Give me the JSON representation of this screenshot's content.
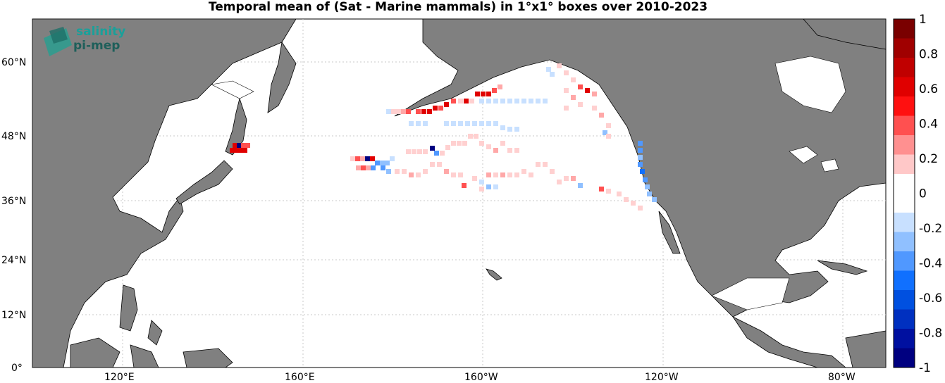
{
  "title": "Temporal mean of (Sat - Marine mammals) in 1°x1° boxes over 2010-2023",
  "logo": {
    "line1": "salinity",
    "line2": "pi-mep"
  },
  "lat_ticks": [
    "60°N",
    "48°N",
    "36°N",
    "24°N",
    "12°N",
    "0°"
  ],
  "lon_ticks": [
    "120°E",
    "160°E",
    "160°W",
    "120°W",
    "80°W"
  ],
  "colorbar": {
    "labels": [
      "1",
      "0.8",
      "0.6",
      "0.4",
      "0.2",
      "0",
      "-0.2",
      "-0.4",
      "-0.6",
      "-0.8",
      "-1"
    ],
    "range": [
      -1,
      1
    ],
    "colors": [
      "#7a0000",
      "#a00000",
      "#c00000",
      "#e00000",
      "#ff1010",
      "#ff5050",
      "#ff9090",
      "#ffc8c8",
      "#ffffff",
      "#ffffff",
      "#c8e0ff",
      "#90c0ff",
      "#5098ff",
      "#1070ff",
      "#0050e0",
      "#0030c0",
      "#0010a0",
      "#000080"
    ]
  },
  "colors": {
    "land": "#808080",
    "ocean": "#ffffff",
    "grid": "#c8c8c8"
  }
}
